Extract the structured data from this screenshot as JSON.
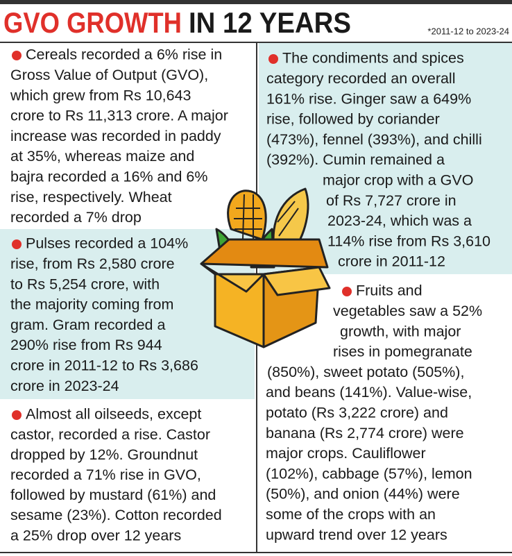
{
  "header": {
    "title": [
      "GVO GROWTH",
      "IN 12 YEARS"
    ],
    "note": "*2011-12 to 2023-24"
  },
  "sections": [
    {
      "lines": [
        "Cereals recorded a 6% rise in",
        "Gross Value of Output (GVO),",
        "which grew from Rs 10,643",
        "crore to Rs 11,313 crore. A major",
        "increase was recorded in paddy",
        "at 35%, whereas maize and",
        "bajra recorded a 16% and 6%",
        "rise, respectively. Wheat",
        "recorded a 7% drop"
      ]
    },
    {
      "lines": [
        "Pulses recorded a 104%",
        "rise, from Rs 2,580 crore",
        "to Rs 5,254 crore, with",
        "the majority coming from",
        "gram. Gram recorded a",
        "290% rise from Rs 944",
        "crore in 2011-12 to Rs 3,686",
        "crore in 2023-24"
      ]
    },
    {
      "lines": [
        "Almost all oilseeds, except",
        "castor, recorded a rise. Castor",
        "dropped by 12%. Groundnut",
        "recorded a 71% rise in GVO,",
        "followed by mustard (61%) and",
        "sesame (23%). Cotton recorded",
        "a 25% drop over 12 years"
      ]
    },
    {
      "lines": [
        "The condiments and spices",
        "category recorded an overall",
        "161% rise. Ginger saw a 649%",
        "rise, followed by coriander",
        "(473%), fennel (393%), and chilli",
        "(392%). Cumin remained a",
        "major crop with a GVO",
        "of Rs 7,727 crore in",
        "2023-24, which was a",
        "114% rise from Rs 3,610",
        "crore in 2011-12"
      ]
    },
    {
      "lines": [
        "Fruits and",
        "vegetables saw a 52%",
        "growth, with major",
        "rises in pomegranate",
        "(850%), sweet potato (505%),",
        "and beans (141%). Value-wise,",
        "potato (Rs 3,222 crore) and",
        "banana (Rs 2,774 crore) were",
        "major crops. Cauliflower",
        "(102%), cabbage (57%), lemon",
        "(50%), and onion (44%) were",
        "some of the crops with an",
        "upward trend over 12 years"
      ]
    }
  ]
}
